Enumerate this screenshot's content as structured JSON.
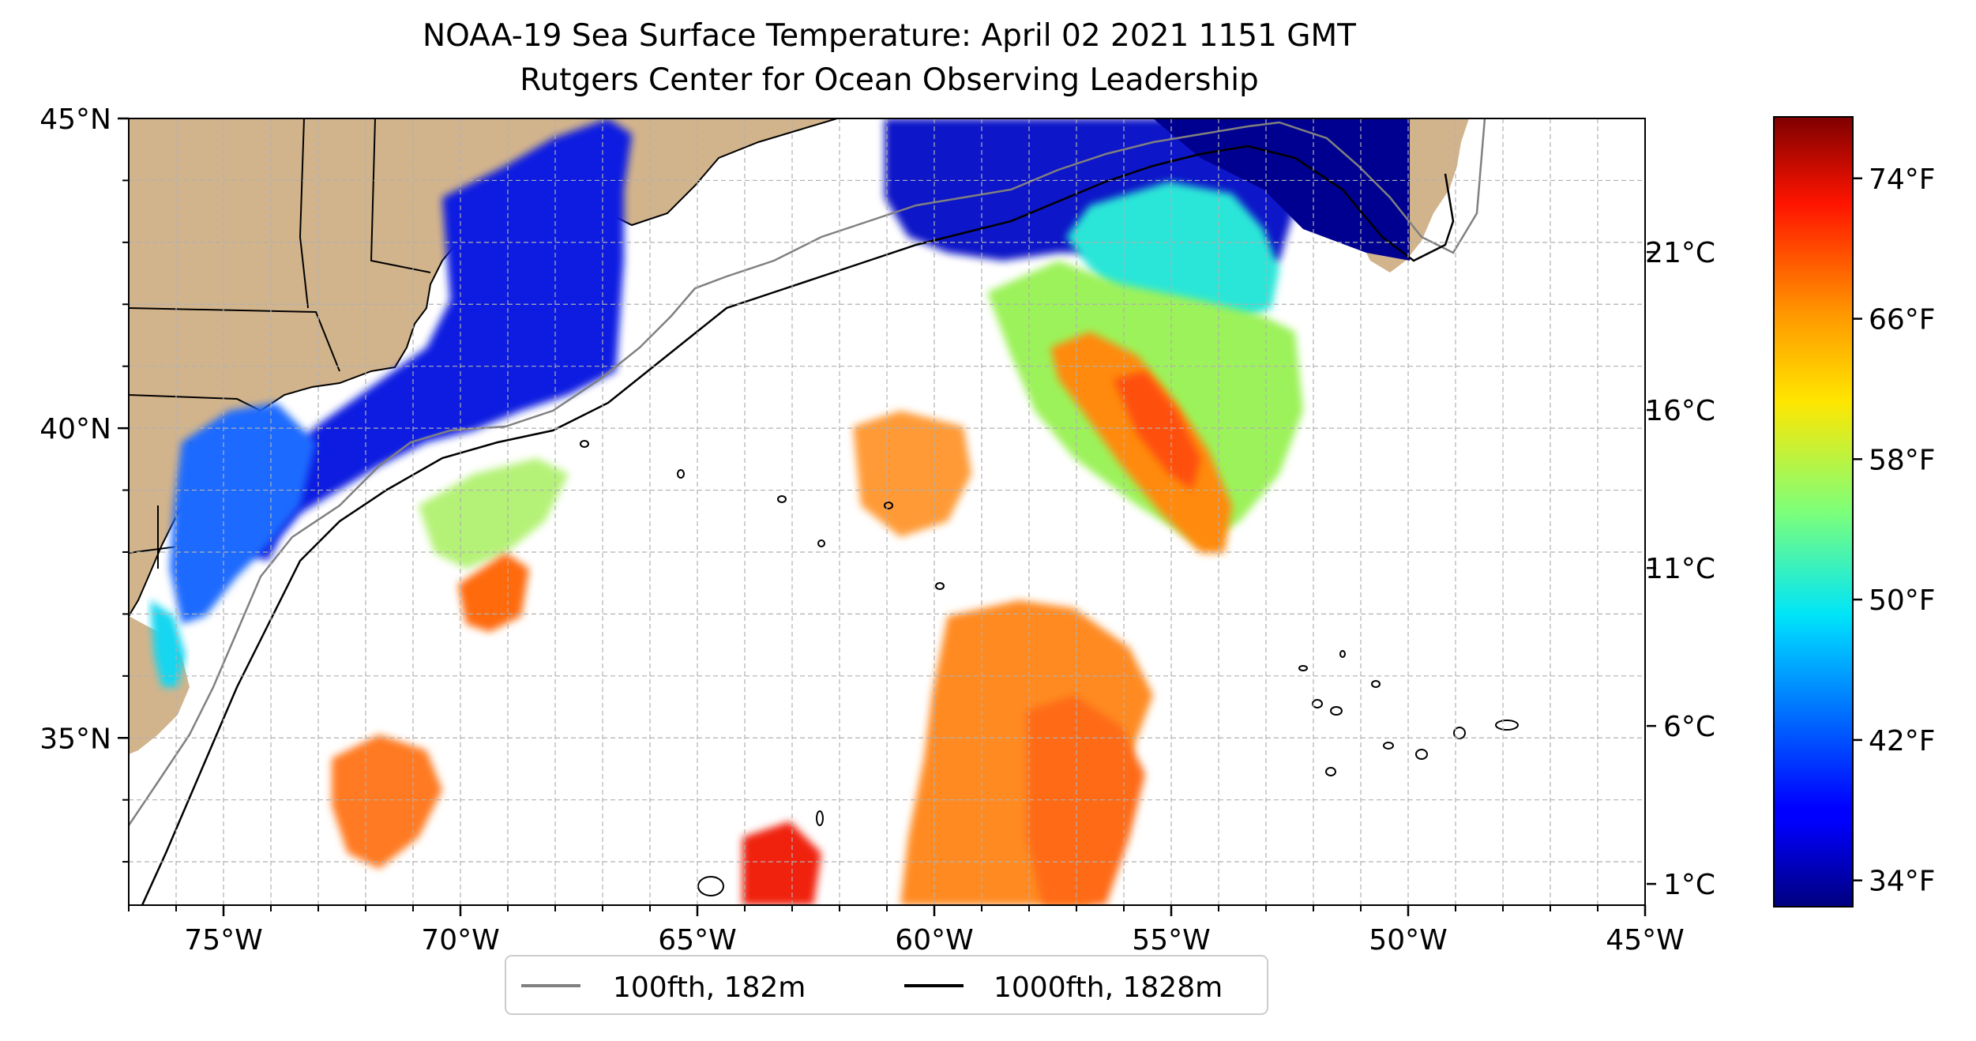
{
  "title": {
    "line1": "NOAA-19 Sea Surface Temperature: April 02 2021 1151 GMT",
    "line2": "Rutgers Center for Ocean Observing Leadership"
  },
  "map": {
    "lon_range": [
      -77,
      -45
    ],
    "lat_range": [
      32.3,
      45
    ],
    "lon_ticks": [
      {
        "value": -75,
        "label": "75°W"
      },
      {
        "value": -70,
        "label": "70°W"
      },
      {
        "value": -65,
        "label": "65°W"
      },
      {
        "value": -60,
        "label": "60°W"
      },
      {
        "value": -55,
        "label": "55°W"
      },
      {
        "value": -50,
        "label": "50°W"
      },
      {
        "value": -45,
        "label": "45°W"
      }
    ],
    "lat_ticks": [
      {
        "value": 35,
        "label": "35°N"
      },
      {
        "value": 40,
        "label": "40°N"
      },
      {
        "value": 45,
        "label": "45°N"
      }
    ],
    "gridlines": true,
    "land_color": "#d2b48c",
    "ocean_color": "#ffffff"
  },
  "legend": {
    "placement": "bottom-center",
    "items": [
      {
        "label": "100fth, 182m",
        "color": "#808080"
      },
      {
        "label": "1000fth, 1828m",
        "color": "#000000"
      }
    ]
  },
  "colorbar": {
    "colormap": "jet",
    "range_f": [
      32.5,
      77.5
    ],
    "celsius_ticks": [
      {
        "value": 1,
        "label": "1°C"
      },
      {
        "value": 6,
        "label": "6°C"
      },
      {
        "value": 11,
        "label": "11°C"
      },
      {
        "value": 16,
        "label": "16°C"
      },
      {
        "value": 21,
        "label": "21°C"
      }
    ],
    "fahrenheit_ticks": [
      {
        "value": 34,
        "label": "34°F"
      },
      {
        "value": 42,
        "label": "42°F"
      },
      {
        "value": 50,
        "label": "50°F"
      },
      {
        "value": 58,
        "label": "58°F"
      },
      {
        "value": 66,
        "label": "66°F"
      },
      {
        "value": 74,
        "label": "74°F"
      }
    ]
  }
}
